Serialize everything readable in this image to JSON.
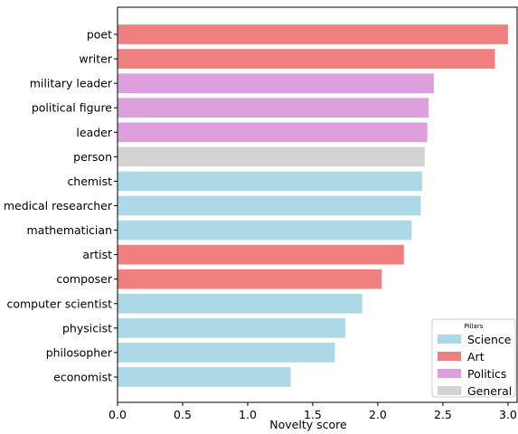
{
  "chart_data": {
    "type": "bar",
    "orientation": "horizontal",
    "xlabel": "Novelty score",
    "ylabel": "",
    "title": "",
    "xlim": [
      0,
      3.07
    ],
    "xticks": [
      0.0,
      0.5,
      1.0,
      1.5,
      2.0,
      2.5,
      3.0
    ],
    "xtick_labels": [
      "0.0",
      "0.5",
      "1.0",
      "1.5",
      "2.0",
      "2.5",
      "3.0"
    ],
    "grid": false,
    "legend": {
      "title": "Pillars",
      "placement": "lower-right",
      "entries": [
        {
          "label": "Science",
          "color": "#add8e6"
        },
        {
          "label": "Art",
          "color": "#f08080"
        },
        {
          "label": "Politics",
          "color": "#dda0dd"
        },
        {
          "label": "General",
          "color": "#d3d3d3"
        }
      ]
    },
    "bars": [
      {
        "category": "poet",
        "value": 3.0,
        "pillar": "Art"
      },
      {
        "category": "writer",
        "value": 2.9,
        "pillar": "Art"
      },
      {
        "category": "military leader",
        "value": 2.43,
        "pillar": "Politics"
      },
      {
        "category": "political figure",
        "value": 2.39,
        "pillar": "Politics"
      },
      {
        "category": "leader",
        "value": 2.38,
        "pillar": "Politics"
      },
      {
        "category": "person",
        "value": 2.36,
        "pillar": "General"
      },
      {
        "category": "chemist",
        "value": 2.34,
        "pillar": "Science"
      },
      {
        "category": "medical researcher",
        "value": 2.33,
        "pillar": "Science"
      },
      {
        "category": "mathematician",
        "value": 2.26,
        "pillar": "Science"
      },
      {
        "category": "artist",
        "value": 2.2,
        "pillar": "Art"
      },
      {
        "category": "composer",
        "value": 2.03,
        "pillar": "Art"
      },
      {
        "category": "computer scientist",
        "value": 1.88,
        "pillar": "Science"
      },
      {
        "category": "physicist",
        "value": 1.75,
        "pillar": "Science"
      },
      {
        "category": "philosopher",
        "value": 1.67,
        "pillar": "Science"
      },
      {
        "category": "economist",
        "value": 1.33,
        "pillar": "Science"
      }
    ]
  }
}
